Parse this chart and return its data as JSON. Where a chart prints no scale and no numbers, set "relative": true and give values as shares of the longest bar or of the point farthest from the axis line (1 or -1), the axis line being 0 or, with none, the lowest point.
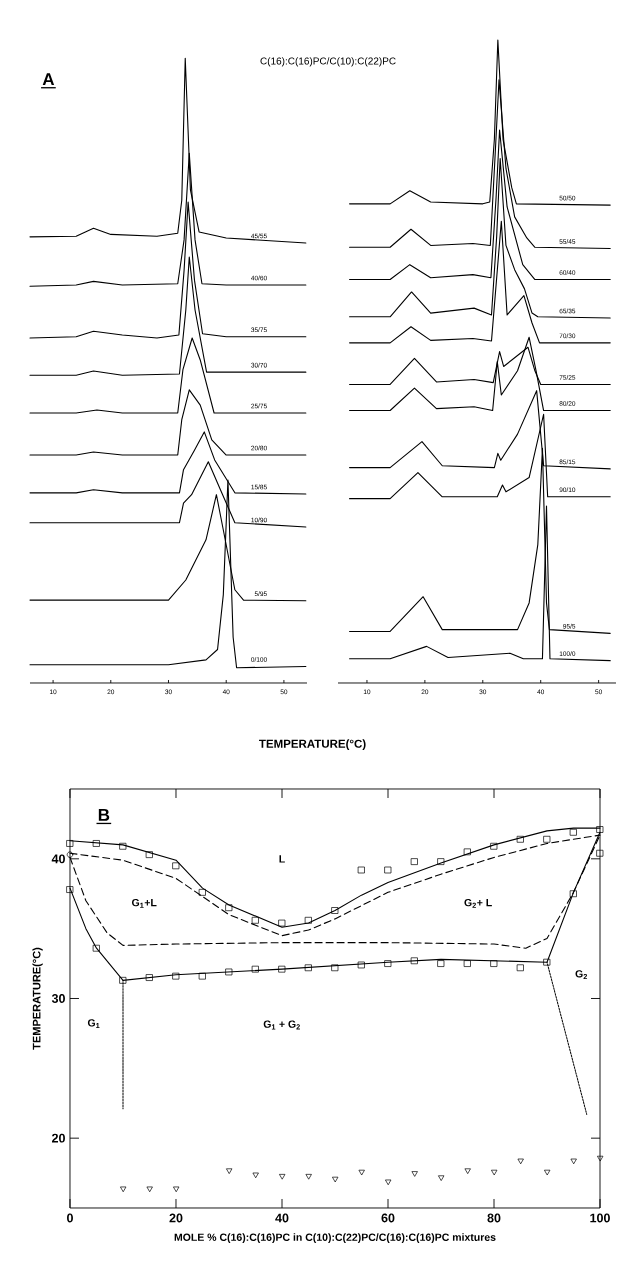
{
  "chart_data": [
    {
      "type": "line",
      "relative": true,
      "title": "C(16):C(16)PC/C(10):C(22)PC",
      "xlabel": "TEMPERATURE(°C)",
      "annotations": [
        "A"
      ],
      "xlim": [
        6,
        54
      ],
      "xticks": [
        10,
        20,
        30,
        40,
        50
      ],
      "marker": "none",
      "line_style": "solid",
      "series": [
        {
          "name": "45/55",
          "color": "#000000",
          "x": [
            6,
            14,
            17,
            20,
            28,
            31.6,
            32.3,
            32.9,
            33.8,
            35.3,
            40,
            53.8
          ],
          "values": [
            0.707,
            0.708,
            0.721,
            0.711,
            0.708,
            0.713,
            0.767,
            1.0,
            0.784,
            0.715,
            0.705,
            0.697
          ]
        },
        {
          "name": "40/60",
          "color": "#000000",
          "x": [
            6,
            14,
            17,
            22,
            31.6,
            32.7,
            33.6,
            34.6,
            35.8,
            40,
            53.8
          ],
          "values": [
            0.626,
            0.628,
            0.634,
            0.628,
            0.63,
            0.702,
            0.844,
            0.702,
            0.63,
            0.628,
            0.628
          ]
        },
        {
          "name": "35/75",
          "color": "#000000",
          "x": [
            6,
            14,
            17,
            22,
            28,
            31.8,
            32.7,
            33.4,
            34.5,
            35.9,
            40,
            53.8
          ],
          "values": [
            0.541,
            0.543,
            0.552,
            0.546,
            0.541,
            0.546,
            0.652,
            0.764,
            0.636,
            0.548,
            0.543,
            0.543
          ]
        },
        {
          "name": "30/70",
          "color": "#000000",
          "x": [
            6,
            14,
            17,
            22,
            31.9,
            33,
            33.6,
            34.6,
            36.6,
            40,
            53.8
          ],
          "values": [
            0.48,
            0.48,
            0.487,
            0.48,
            0.482,
            0.587,
            0.674,
            0.587,
            0.485,
            0.485,
            0.485
          ]
        },
        {
          "name": "25/75",
          "color": "#000000",
          "x": [
            6,
            14,
            17.6,
            22,
            31.6,
            32.5,
            34.1,
            35.5,
            37.9,
            53.8
          ],
          "values": [
            0.418,
            0.418,
            0.423,
            0.418,
            0.418,
            0.489,
            0.541,
            0.505,
            0.418,
            0.418
          ]
        },
        {
          "name": "20/80",
          "color": "#000000",
          "x": [
            6,
            14,
            17,
            22,
            31.6,
            32.3,
            33.6,
            35.5,
            37.5,
            40,
            53.8
          ],
          "values": [
            0.349,
            0.349,
            0.354,
            0.349,
            0.349,
            0.407,
            0.456,
            0.431,
            0.374,
            0.349,
            0.349
          ]
        },
        {
          "name": "15/85",
          "color": "#000000",
          "x": [
            6,
            14,
            17,
            22,
            31.9,
            32.6,
            34.5,
            36.2,
            38,
            41.5,
            53.8
          ],
          "values": [
            0.287,
            0.287,
            0.292,
            0.287,
            0.287,
            0.325,
            0.357,
            0.387,
            0.341,
            0.287,
            0.285
          ]
        },
        {
          "name": "10/90",
          "color": "#000000",
          "x": [
            6,
            14,
            22,
            31.9,
            32.6,
            34,
            36.9,
            39,
            41.5,
            53.8
          ],
          "values": [
            0.238,
            0.238,
            0.238,
            0.238,
            0.27,
            0.284,
            0.338,
            0.292,
            0.238,
            0.231
          ]
        },
        {
          "name": "5/95",
          "color": "#000000",
          "x": [
            6,
            30,
            33,
            36.5,
            38.3,
            39.5,
            41.5,
            43,
            53.8
          ],
          "values": [
            0.111,
            0.111,
            0.144,
            0.21,
            0.284,
            0.226,
            0.128,
            0.111,
            0.11
          ]
        },
        {
          "name": "0/100",
          "color": "#000000",
          "x": [
            6,
            30,
            36.5,
            38.5,
            39.5,
            40.3,
            41.2,
            41.8,
            53.8
          ],
          "values": [
            0.005,
            0.005,
            0.013,
            0.03,
            0.12,
            0.308,
            0.05,
            0.0,
            0.002
          ]
        }
      ]
    },
    {
      "type": "line",
      "relative": true,
      "xlim": [
        5,
        53
      ],
      "xticks": [
        10,
        20,
        30,
        40,
        50
      ],
      "marker": "none",
      "line_style": "solid",
      "series": [
        {
          "name": "50/50",
          "color": "#000000",
          "x": [
            7,
            14,
            17.4,
            21,
            30,
            31.2,
            32,
            32.6,
            33.5,
            35,
            35.8,
            52
          ],
          "values": [
            0.736,
            0.736,
            0.757,
            0.739,
            0.736,
            0.739,
            0.84,
            1.0,
            0.84,
            0.762,
            0.736,
            0.734
          ]
        },
        {
          "name": "55/45",
          "color": "#000000",
          "x": [
            7,
            14,
            17.6,
            21,
            28.3,
            31.3,
            32.1,
            32.8,
            34,
            35.5,
            37.6,
            39,
            52
          ],
          "values": [
            0.666,
            0.666,
            0.695,
            0.669,
            0.672,
            0.669,
            0.809,
            0.936,
            0.793,
            0.715,
            0.681,
            0.666,
            0.664
          ]
        },
        {
          "name": "60/40",
          "color": "#000000",
          "x": [
            7,
            14,
            17.4,
            21,
            28.3,
            31.4,
            32.3,
            32.9,
            34.2,
            36.9,
            39,
            52
          ],
          "values": [
            0.614,
            0.614,
            0.638,
            0.617,
            0.622,
            0.617,
            0.747,
            0.855,
            0.731,
            0.638,
            0.614,
            0.614
          ]
        },
        {
          "name": "65/35",
          "color": "#000000",
          "x": [
            7,
            14,
            17.7,
            21,
            28.5,
            31.5,
            32.4,
            33,
            34,
            35.5,
            37.2,
            38.5,
            39.5,
            52
          ],
          "values": [
            0.554,
            0.554,
            0.594,
            0.56,
            0.568,
            0.557,
            0.684,
            0.809,
            0.669,
            0.63,
            0.599,
            0.56,
            0.554,
            0.552
          ]
        },
        {
          "name": "70/30",
          "color": "#000000",
          "x": [
            7,
            14,
            17.6,
            21,
            28.3,
            31.5,
            33.2,
            34.2,
            37.1,
            38.5,
            39.8,
            52
          ],
          "values": [
            0.512,
            0.512,
            0.538,
            0.516,
            0.519,
            0.515,
            0.708,
            0.557,
            0.588,
            0.544,
            0.512,
            0.512
          ]
        },
        {
          "name": "75/25",
          "color": "#000000",
          "x": [
            7,
            14,
            18.2,
            22,
            28.5,
            31.8,
            32.9,
            33.6,
            37.8,
            39,
            40,
            52
          ],
          "values": [
            0.445,
            0.445,
            0.487,
            0.449,
            0.453,
            0.448,
            0.498,
            0.474,
            0.505,
            0.467,
            0.445,
            0.445
          ]
        },
        {
          "name": "80/20",
          "color": "#000000",
          "x": [
            7,
            14,
            18.2,
            22,
            28.5,
            31.7,
            32.5,
            33.2,
            36,
            38,
            39.2,
            40.5,
            52
          ],
          "values": [
            0.403,
            0.403,
            0.439,
            0.406,
            0.409,
            0.403,
            0.482,
            0.428,
            0.467,
            0.521,
            0.467,
            0.403,
            0.403
          ]
        },
        {
          "name": "85/15",
          "color": "#000000",
          "x": [
            7,
            14,
            19.5,
            23,
            32,
            32.6,
            33.1,
            36,
            39.3,
            40.5,
            52
          ],
          "values": [
            0.311,
            0.311,
            0.353,
            0.314,
            0.311,
            0.334,
            0.323,
            0.365,
            0.435,
            0.314,
            0.309
          ]
        },
        {
          "name": "90/10",
          "color": "#000000",
          "x": [
            7,
            14,
            18.8,
            23,
            32.5,
            33.4,
            34,
            38,
            40.5,
            41.2,
            52
          ],
          "values": [
            0.261,
            0.261,
            0.303,
            0.264,
            0.264,
            0.283,
            0.272,
            0.295,
            0.397,
            0.264,
            0.264
          ]
        },
        {
          "name": "95/5",
          "color": "#000000",
          "x": [
            7,
            14,
            19.7,
            23,
            36,
            38,
            39.5,
            40.3,
            41,
            41.5,
            52
          ],
          "values": [
            0.047,
            0.047,
            0.103,
            0.05,
            0.05,
            0.093,
            0.187,
            0.342,
            0.093,
            0.05,
            0.044
          ]
        },
        {
          "name": "100/0",
          "color": "#000000",
          "x": [
            7,
            14,
            20.3,
            24,
            34.7,
            37,
            40.3,
            41,
            41.6,
            52
          ],
          "values": [
            0.003,
            0.003,
            0.023,
            0.005,
            0.012,
            0.003,
            0.003,
            0.249,
            0.003,
            0.0
          ]
        }
      ]
    },
    {
      "type": "scatter",
      "xlabel": "MOLE %  C(16):C(16)PC in C(10):C(22)PC/C(16):C(16)PC mixtures",
      "ylabel": "TEMPERATURE(°C)",
      "xlim": [
        0,
        100
      ],
      "ylim": [
        15,
        45
      ],
      "xticks": [
        0,
        20,
        40,
        60,
        80,
        100
      ],
      "yticks": [
        20,
        30,
        40
      ],
      "annotations": [
        "B",
        "L",
        "G$_{1}$+L",
        "G$_{2}$+ L",
        "G$_{2}$",
        "G$_{1}$",
        "G$_{1}$ + G$_{2}$"
      ],
      "x": [
        0,
        5,
        10,
        15,
        20,
        25,
        30,
        35,
        40,
        45,
        50,
        55,
        60,
        65,
        70,
        75,
        80,
        85,
        90,
        95,
        100
      ],
      "series": [
        {
          "type": "line",
          "color": "#000000",
          "marker": "none",
          "line_style": "solid",
          "x": [
            0,
            10,
            20,
            25,
            30,
            40,
            45,
            50,
            55,
            60,
            70,
            80,
            90,
            95,
            100
          ],
          "values": [
            41.3,
            41.0,
            39.9,
            37.9,
            36.7,
            35.1,
            35.4,
            36.3,
            37.4,
            38.3,
            39.7,
            41.0,
            42.0,
            42.2,
            42.2
          ]
        },
        {
          "type": "line",
          "color": "#000000",
          "marker": "none",
          "line_style": "dashed",
          "x": [
            0,
            10,
            20,
            25,
            30,
            40,
            45,
            50,
            60,
            70,
            80,
            90,
            100
          ],
          "values": [
            40.4,
            39.9,
            38.6,
            37.3,
            36.0,
            34.5,
            34.9,
            35.7,
            37.6,
            38.9,
            40.1,
            41.1,
            41.7
          ]
        },
        {
          "type": "line",
          "color": "#000000",
          "marker": "none",
          "line_style": "dashed",
          "x": [
            0,
            3,
            7,
            10,
            20,
            40,
            60,
            80,
            86,
            90,
            95,
            100
          ],
          "values": [
            40.1,
            37.0,
            34.7,
            33.8,
            33.9,
            34.0,
            34.0,
            33.9,
            33.6,
            34.3,
            37.6,
            41.7
          ]
        },
        {
          "type": "line",
          "color": "#000000",
          "marker": "none",
          "line_style": "solid",
          "x": [
            0,
            3,
            5,
            10,
            20,
            40,
            60,
            70,
            90,
            95,
            100
          ],
          "values": [
            37.9,
            35.0,
            33.6,
            31.3,
            31.7,
            32.1,
            32.6,
            32.8,
            32.6,
            37.6,
            41.9
          ]
        },
        {
          "type": "line",
          "color": "#000000",
          "marker": "none",
          "line_style": "dotted",
          "x": [
            10,
            10
          ],
          "values": [
            31.3,
            22.1
          ]
        },
        {
          "type": "line",
          "color": "#000000",
          "marker": "none",
          "line_style": "dotted",
          "x": [
            90,
            97.5
          ],
          "values": [
            32.6,
            21.7
          ]
        },
        {
          "color": "#000000",
          "marker": "square",
          "values": [
            41.1,
            41.1,
            40.9,
            40.3,
            39.5,
            37.6,
            36.5,
            35.6,
            35.4,
            35.6,
            36.3,
            39.2,
            39.2,
            39.8,
            39.8,
            40.5,
            40.9,
            41.4,
            41.4,
            41.9,
            42.1
          ]
        },
        {
          "color": "#000000",
          "marker": "square",
          "values": [
            37.8,
            33.6,
            31.3,
            31.5,
            31.6,
            31.6,
            31.9,
            32.1,
            32.1,
            32.2,
            32.2,
            32.4,
            32.5,
            32.7,
            32.5,
            32.5,
            32.5,
            32.2,
            32.6,
            37.5,
            40.4
          ]
        },
        {
          "color": "#000000",
          "marker": "circle",
          "x": [
            0
          ],
          "values": [
            40.3
          ]
        },
        {
          "color": "#000000",
          "marker": "triangle",
          "x": [
            10,
            15,
            20,
            30,
            35,
            40,
            45,
            50,
            55,
            60,
            65,
            70,
            75,
            80,
            85,
            90,
            95,
            100
          ],
          "values": [
            16.4,
            16.4,
            16.4,
            17.7,
            17.4,
            17.3,
            17.3,
            17.1,
            17.6,
            16.9,
            17.5,
            17.2,
            17.7,
            17.6,
            18.4,
            17.6,
            18.4,
            18.6
          ]
        }
      ]
    }
  ]
}
